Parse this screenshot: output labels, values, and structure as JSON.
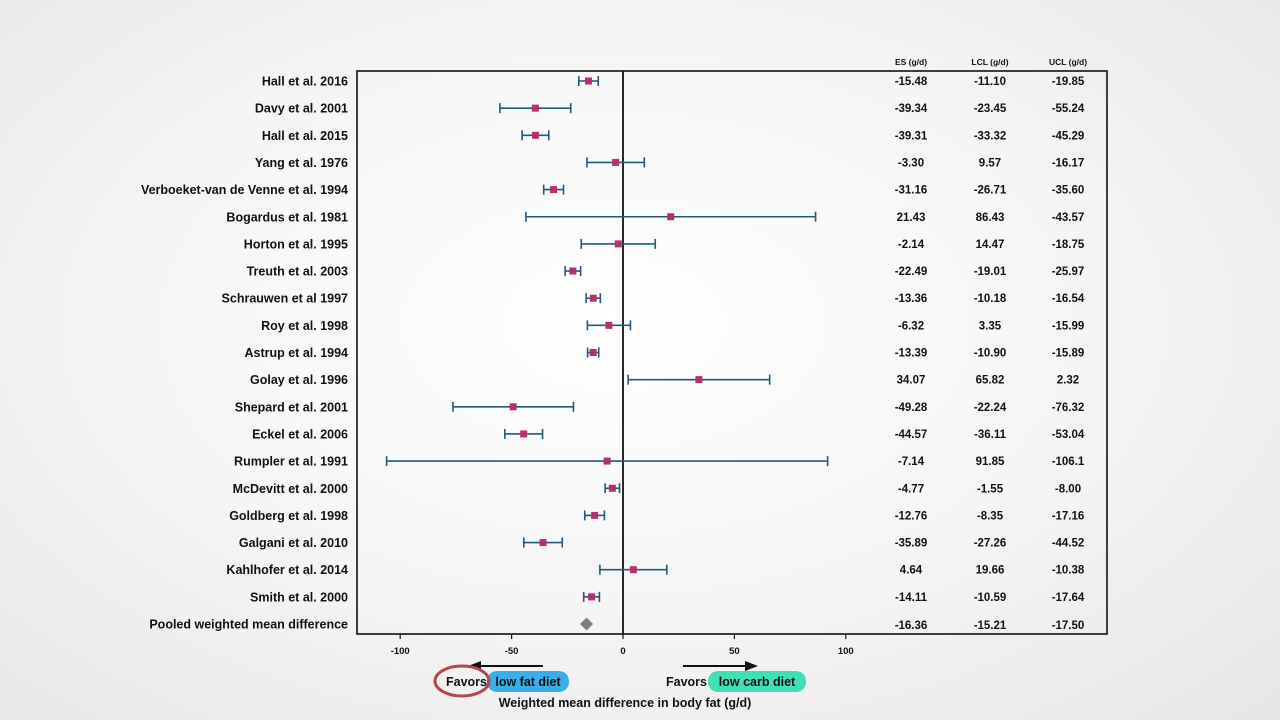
{
  "chart_data": {
    "type": "forest",
    "xlabel": "Weighted mean difference in body fat (g/d)",
    "xlim": [
      -110,
      110
    ],
    "xticks": [
      -100,
      -50,
      0,
      50,
      100
    ],
    "tick_labels": [
      "-100",
      "-50",
      "0",
      "50",
      "100"
    ],
    "column_headers": [
      "ES (g/d)",
      "LCL (g/d)",
      "UCL (g/d)"
    ],
    "colors": {
      "marker": "#b5306c",
      "ci_line": "#1f5a7a",
      "pooled": "#808080"
    },
    "studies": [
      {
        "name": "Hall et al. 2016",
        "es": -15.48,
        "lcl": -11.1,
        "ucl": -19.85,
        "es_t": "-15.48",
        "lcl_t": "-11.10",
        "ucl_t": "-19.85"
      },
      {
        "name": "Davy et al. 2001",
        "es": -39.34,
        "lcl": -23.45,
        "ucl": -55.24,
        "es_t": "-39.34",
        "lcl_t": "-23.45",
        "ucl_t": "-55.24"
      },
      {
        "name": "Hall et al. 2015",
        "es": -39.31,
        "lcl": -33.32,
        "ucl": -45.29,
        "es_t": "-39.31",
        "lcl_t": "-33.32",
        "ucl_t": "-45.29"
      },
      {
        "name": "Yang et al. 1976",
        "es": -3.3,
        "lcl": 9.57,
        "ucl": -16.17,
        "es_t": "-3.30",
        "lcl_t": "9.57",
        "ucl_t": "-16.17"
      },
      {
        "name": "Verboeket-van de Venne et al. 1994",
        "es": -31.16,
        "lcl": -26.71,
        "ucl": -35.6,
        "es_t": "-31.16",
        "lcl_t": "-26.71",
        "ucl_t": "-35.60"
      },
      {
        "name": "Bogardus et al. 1981",
        "es": 21.43,
        "lcl": 86.43,
        "ucl": -43.57,
        "es_t": "21.43",
        "lcl_t": "86.43",
        "ucl_t": "-43.57"
      },
      {
        "name": "Horton et al. 1995",
        "es": -2.14,
        "lcl": 14.47,
        "ucl": -18.75,
        "es_t": "-2.14",
        "lcl_t": "14.47",
        "ucl_t": "-18.75"
      },
      {
        "name": "Treuth et al. 2003",
        "es": -22.49,
        "lcl": -19.01,
        "ucl": -25.97,
        "es_t": "-22.49",
        "lcl_t": "-19.01",
        "ucl_t": "-25.97"
      },
      {
        "name": "Schrauwen et al 1997",
        "es": -13.36,
        "lcl": -10.18,
        "ucl": -16.54,
        "es_t": "-13.36",
        "lcl_t": "-10.18",
        "ucl_t": "-16.54"
      },
      {
        "name": "Roy et al. 1998",
        "es": -6.32,
        "lcl": 3.35,
        "ucl": -15.99,
        "es_t": "-6.32",
        "lcl_t": "3.35",
        "ucl_t": "-15.99"
      },
      {
        "name": "Astrup et al. 1994",
        "es": -13.39,
        "lcl": -10.9,
        "ucl": -15.89,
        "es_t": "-13.39",
        "lcl_t": "-10.90",
        "ucl_t": "-15.89"
      },
      {
        "name": "Golay et al. 1996",
        "es": 34.07,
        "lcl": 65.82,
        "ucl": 2.32,
        "es_t": "34.07",
        "lcl_t": "65.82",
        "ucl_t": "2.32"
      },
      {
        "name": "Shepard et al. 2001",
        "es": -49.28,
        "lcl": -22.24,
        "ucl": -76.32,
        "es_t": "-49.28",
        "lcl_t": "-22.24",
        "ucl_t": "-76.32"
      },
      {
        "name": "Eckel et al. 2006",
        "es": -44.57,
        "lcl": -36.11,
        "ucl": -53.04,
        "es_t": "-44.57",
        "lcl_t": "-36.11",
        "ucl_t": "-53.04"
      },
      {
        "name": "Rumpler et al. 1991",
        "es": -7.14,
        "lcl": 91.85,
        "ucl": -106.1,
        "es_t": "-7.14",
        "lcl_t": "91.85",
        "ucl_t": "-106.1"
      },
      {
        "name": "McDevitt et al. 2000",
        "es": -4.77,
        "lcl": -1.55,
        "ucl": -8.0,
        "es_t": "-4.77",
        "lcl_t": "-1.55",
        "ucl_t": "-8.00"
      },
      {
        "name": "Goldberg et al. 1998",
        "es": -12.76,
        "lcl": -8.35,
        "ucl": -17.16,
        "es_t": "-12.76",
        "lcl_t": "-8.35",
        "ucl_t": "-17.16"
      },
      {
        "name": "Galgani et al. 2010",
        "es": -35.89,
        "lcl": -27.26,
        "ucl": -44.52,
        "es_t": "-35.89",
        "lcl_t": "-27.26",
        "ucl_t": "-44.52"
      },
      {
        "name": "Kahlhofer et al. 2014",
        "es": 4.64,
        "lcl": 19.66,
        "ucl": -10.38,
        "es_t": "4.64",
        "lcl_t": "19.66",
        "ucl_t": "-10.38"
      },
      {
        "name": "Smith et al. 2000",
        "es": -14.11,
        "lcl": -10.59,
        "ucl": -17.64,
        "es_t": "-14.11",
        "lcl_t": "-10.59",
        "ucl_t": "-17.64"
      }
    ],
    "pooled": {
      "name": "Pooled weighted mean difference",
      "es": -16.36,
      "lcl": -15.21,
      "ucl": -17.5,
      "es_t": "-16.36",
      "lcl_t": "-15.21",
      "ucl_t": "-17.50"
    },
    "annotations": {
      "left": {
        "prefix": "Favors",
        "highlight": "low fat diet",
        "highlight_color": "#3aaee8",
        "circle_color": "#b04a4a"
      },
      "right": {
        "prefix": "Favors",
        "highlight": "low carb diet",
        "highlight_color": "#3fe0b5"
      }
    }
  }
}
